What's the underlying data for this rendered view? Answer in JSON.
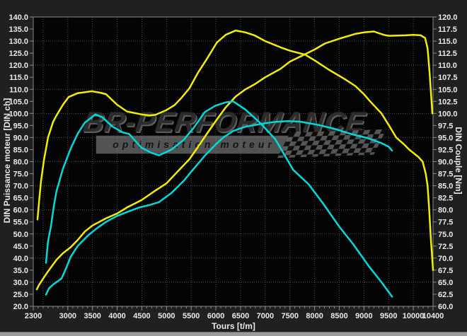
{
  "watermark": {
    "brand": "BR-Performance",
    "tagline": "optimisation moteur"
  },
  "axes": {
    "left_title": "DIN Puissance moteur [DIN ch]",
    "right_title": "DIN Couple [Nm]",
    "x_title": "Tours [t/m]"
  },
  "colors": {
    "yellow_curve": "#f2ee00",
    "cyan_curve": "#00d9d9",
    "plot_background": "#040404",
    "outer_background": "#202020",
    "grid": "#4f4f4f",
    "frame": "#888888",
    "tick_text": "#eaeaea"
  },
  "chart_data": {
    "type": "line",
    "title": "",
    "grid": "dotted, vertical every 500 rpm, horizontal every 10 ch / 5 Nm",
    "legend_position": "none",
    "x_axis": {
      "label": "Tours [t/m]",
      "min": 2300,
      "max": 10400,
      "grid_step": 500,
      "minor_tick_step": 100,
      "tick_labels": [
        "2300",
        "3000",
        "3500",
        "4000",
        "4500",
        "5000",
        "5500",
        "6000",
        "6500",
        "7000",
        "7500",
        "8000",
        "8500",
        "9000",
        "9500",
        "10000",
        "10400"
      ]
    },
    "left_axis": {
      "label": "DIN Puissance moteur [DIN ch]",
      "min": 20,
      "max": 140,
      "tick_labels": [
        "140.0",
        "135.0",
        "130.0",
        "125.0",
        "120.0",
        "115.0",
        "110.0",
        "105.0",
        "100.0",
        "95.0",
        "90.0",
        "85.0",
        "80.0",
        "75.0",
        "70.0",
        "65.0",
        "60.0",
        "55.0",
        "50.0",
        "45.0",
        "40.0",
        "35.0",
        "30.0",
        "25.0",
        "20.0"
      ]
    },
    "right_axis": {
      "label": "DIN Couple [Nm]",
      "min": 60,
      "max": 120,
      "tick_labels": [
        "120.0",
        "117.5",
        "115.0",
        "112.5",
        "110.0",
        "107.5",
        "105.0",
        "102.5",
        "100.0",
        "97.5",
        "95.0",
        "92.5",
        "90.0",
        "87.5",
        "85.0",
        "82.5",
        "80.0",
        "77.5",
        "75.0",
        "72.5",
        "70.0",
        "67.5",
        "65.0",
        "62.5",
        "60.0"
      ]
    },
    "series": [
      {
        "name": "power_yellow",
        "axis": "left",
        "color": "#f2ee00",
        "points": [
          [
            2372,
            27
          ],
          [
            2420,
            29
          ],
          [
            2500,
            31.5
          ],
          [
            2600,
            34.5
          ],
          [
            2772,
            39.3
          ],
          [
            2900,
            42
          ],
          [
            3058,
            44.5
          ],
          [
            3200,
            47.5
          ],
          [
            3345,
            51
          ],
          [
            3500,
            53.5
          ],
          [
            3774,
            56.5
          ],
          [
            4000,
            58.5
          ],
          [
            4200,
            61
          ],
          [
            4490,
            64
          ],
          [
            4775,
            68
          ],
          [
            5000,
            71
          ],
          [
            5161,
            74.5
          ],
          [
            5300,
            77.5
          ],
          [
            5462,
            81
          ],
          [
            5634,
            86
          ],
          [
            5800,
            91
          ],
          [
            6020,
            97.5
          ],
          [
            6200,
            102.5
          ],
          [
            6400,
            107
          ],
          [
            6600,
            110
          ],
          [
            6780,
            112
          ],
          [
            7000,
            115
          ],
          [
            7310,
            118.5
          ],
          [
            7500,
            121.5
          ],
          [
            7805,
            124.5
          ],
          [
            8000,
            126.5
          ],
          [
            8210,
            129
          ],
          [
            8500,
            131
          ],
          [
            8825,
            133
          ],
          [
            9000,
            133.6
          ],
          [
            9200,
            134
          ],
          [
            9400,
            132.6
          ],
          [
            9500,
            132.2
          ],
          [
            9700,
            132.3
          ],
          [
            9850,
            132.4
          ],
          [
            10000,
            132.6
          ],
          [
            10150,
            132.4
          ],
          [
            10240,
            131.3
          ],
          [
            10290,
            127
          ],
          [
            10330,
            117
          ],
          [
            10360,
            108
          ],
          [
            10385,
            100
          ]
        ]
      },
      {
        "name": "torque_yellow",
        "axis": "right",
        "color": "#f2ee00",
        "points": [
          [
            2386,
            78
          ],
          [
            2420,
            82
          ],
          [
            2457,
            86
          ],
          [
            2520,
            90.5
          ],
          [
            2600,
            95
          ],
          [
            2700,
            98.2
          ],
          [
            2772,
            99.6
          ],
          [
            2900,
            101.8
          ],
          [
            3015,
            103.4
          ],
          [
            3200,
            104.2
          ],
          [
            3487,
            104.6
          ],
          [
            3650,
            104.3
          ],
          [
            3774,
            104
          ],
          [
            4000,
            101.8
          ],
          [
            4200,
            100.4
          ],
          [
            4490,
            99.8
          ],
          [
            4650,
            99.6
          ],
          [
            4775,
            99.7
          ],
          [
            5000,
            100.7
          ],
          [
            5161,
            101.7
          ],
          [
            5300,
            103.2
          ],
          [
            5462,
            105.2
          ],
          [
            5634,
            108.4
          ],
          [
            5800,
            111
          ],
          [
            6020,
            114.7
          ],
          [
            6200,
            116.3
          ],
          [
            6400,
            117.2
          ],
          [
            6600,
            116.8
          ],
          [
            6780,
            116.2
          ],
          [
            7000,
            115
          ],
          [
            7310,
            113.7
          ],
          [
            7500,
            113
          ],
          [
            7805,
            112.2
          ],
          [
            8000,
            111
          ],
          [
            8300,
            109
          ],
          [
            8600,
            107.2
          ],
          [
            8825,
            105.7
          ],
          [
            9000,
            104
          ],
          [
            9126,
            102.5
          ],
          [
            9355,
            100
          ],
          [
            9508,
            97.5
          ],
          [
            9655,
            95
          ],
          [
            9800,
            93.7
          ],
          [
            9917,
            92.5
          ],
          [
            10100,
            91
          ],
          [
            10189,
            90
          ],
          [
            10252,
            87.5
          ],
          [
            10290,
            85
          ],
          [
            10320,
            80.5
          ],
          [
            10355,
            74
          ],
          [
            10400,
            67.5
          ]
        ]
      },
      {
        "name": "power_cyan",
        "axis": "left",
        "color": "#00d9d9",
        "points": [
          [
            2558,
            24.8
          ],
          [
            2620,
            27.5
          ],
          [
            2720,
            29.3
          ],
          [
            2872,
            31.5
          ],
          [
            2950,
            35
          ],
          [
            3058,
            40.5
          ],
          [
            3200,
            45
          ],
          [
            3416,
            49.5
          ],
          [
            3600,
            52.5
          ],
          [
            3774,
            55
          ],
          [
            4000,
            57.5
          ],
          [
            4250,
            59.5
          ],
          [
            4447,
            61
          ],
          [
            4650,
            62
          ],
          [
            4847,
            63.2
          ],
          [
            5100,
            67
          ],
          [
            5347,
            72
          ],
          [
            5550,
            77
          ],
          [
            5777,
            82.5
          ],
          [
            5992,
            87
          ],
          [
            6150,
            90
          ],
          [
            6350,
            92.7
          ],
          [
            6600,
            94.5
          ],
          [
            6930,
            95.7
          ],
          [
            7200,
            96.5
          ],
          [
            7450,
            96.8
          ],
          [
            7700,
            96.6
          ],
          [
            8080,
            95.2
          ],
          [
            8400,
            93.6
          ],
          [
            8782,
            91.2
          ],
          [
            9068,
            89.8
          ],
          [
            9355,
            87.7
          ],
          [
            9500,
            86.2
          ],
          [
            9570,
            84.6
          ]
        ]
      },
      {
        "name": "torque_cyan",
        "axis": "right",
        "color": "#00d9d9",
        "points": [
          [
            2558,
            69
          ],
          [
            2600,
            73.5
          ],
          [
            2658,
            76.6
          ],
          [
            2720,
            81
          ],
          [
            2772,
            83.9
          ],
          [
            2900,
            88.5
          ],
          [
            3058,
            92.7
          ],
          [
            3200,
            95.8
          ],
          [
            3345,
            98.1
          ],
          [
            3559,
            99.8
          ],
          [
            3700,
            99.2
          ],
          [
            3900,
            97.3
          ],
          [
            4103,
            96.1
          ],
          [
            4246,
            95.7
          ],
          [
            4489,
            92.9
          ],
          [
            4700,
            91.8
          ],
          [
            4847,
            91.3
          ],
          [
            5100,
            92.5
          ],
          [
            5347,
            94.5
          ],
          [
            5550,
            97
          ],
          [
            5777,
            100.3
          ],
          [
            5992,
            101.6
          ],
          [
            6200,
            102.3
          ],
          [
            6350,
            102.5
          ],
          [
            6600,
            100.8
          ],
          [
            6900,
            98
          ],
          [
            7208,
            94.6
          ],
          [
            7566,
            88.3
          ],
          [
            7880,
            85.3
          ],
          [
            8166,
            81.4
          ],
          [
            8500,
            76.5
          ],
          [
            8782,
            72.9
          ],
          [
            9100,
            68.3
          ],
          [
            9355,
            65
          ],
          [
            9570,
            62
          ]
        ]
      }
    ]
  }
}
